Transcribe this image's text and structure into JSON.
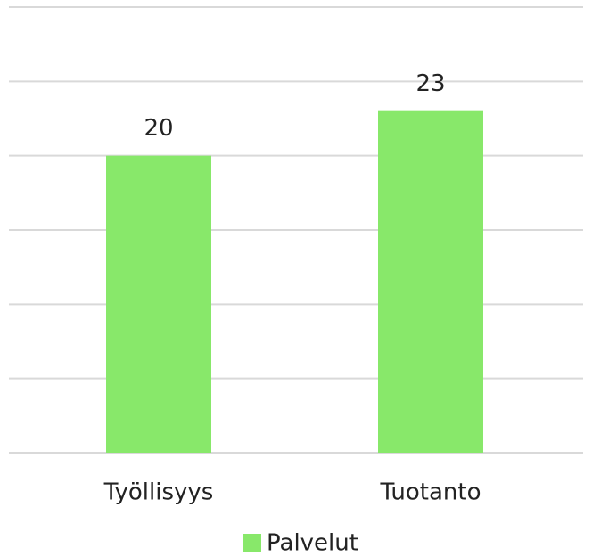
{
  "chart_data": {
    "type": "bar",
    "categories": [
      "Työllisyys",
      "Tuotanto"
    ],
    "series": [
      {
        "name": "Palvelut",
        "color": "#88e86a",
        "values": [
          20,
          23
        ]
      }
    ],
    "ylim": [
      0,
      30
    ],
    "yticks": [
      0,
      5,
      10,
      15,
      20,
      25,
      30
    ],
    "grid": true,
    "legend": "bottom"
  }
}
